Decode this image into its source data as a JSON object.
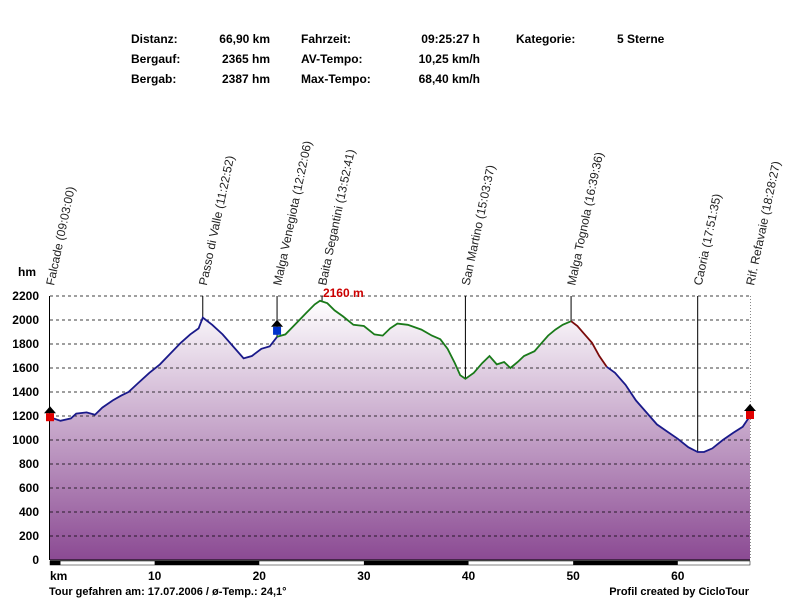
{
  "stats": {
    "distanz_label": "Distanz:",
    "distanz_value": "66,90 km",
    "bergauf_label": "Bergauf:",
    "bergauf_value": "2365 hm",
    "bergab_label": "Bergab:",
    "bergab_value": "2387 hm",
    "fahrzeit_label": "Fahrzeit:",
    "fahrzeit_value": "09:25:27 h",
    "av_label": "AV-Tempo:",
    "av_value": "10,25 km/h",
    "max_label": "Max-Tempo:",
    "max_value": "68,40 km/h",
    "kategorie_label": "Kategorie:",
    "kategorie_value": "5 Sterne"
  },
  "footer": {
    "left": "Tour gefahren am: 17.07.2006  /  ø-Temp.: 24,1°",
    "right": "Profil created by CicloTour"
  },
  "colors": {
    "fill_top": "#ffffff",
    "fill_bottom": "#8b4a93",
    "line_blue": "#1a1a8a",
    "line_green": "#1a7a1a",
    "line_red": "#7a0a0a",
    "max_label": "#cc0000",
    "marker_red": "#e00000",
    "marker_blue": "#0033cc"
  },
  "chart_data": {
    "type": "area",
    "ylabel": "hm",
    "xlabel": "km",
    "xlim": [
      0,
      66.9
    ],
    "ylim": [
      0,
      2200
    ],
    "yticks": [
      0,
      200,
      400,
      600,
      800,
      1000,
      1200,
      1400,
      1600,
      1800,
      2000,
      2200
    ],
    "xticks": [
      10,
      20,
      30,
      40,
      50,
      60
    ],
    "grid": "horizontal dashed",
    "max_annotation": {
      "label": "2160 m",
      "x": 25.8,
      "y": 2160
    },
    "waypoints": [
      {
        "name": "Falcade (09:03:00)",
        "x": 0,
        "elevation": 1190
      },
      {
        "name": "Passo di Valle (11:22:52)",
        "x": 14.6,
        "elevation": 2020
      },
      {
        "name": "Malga Venegiota (12:22:06)",
        "x": 21.7,
        "elevation": 1860
      },
      {
        "name": "Baita Segantini (13:52:41)",
        "x": 26.0,
        "elevation": 2160
      },
      {
        "name": "San Martino (15:03:37)",
        "x": 39.7,
        "elevation": 1510
      },
      {
        "name": "Malga Tognola (16:39:36)",
        "x": 49.8,
        "elevation": 1990
      },
      {
        "name": "Caoria (17:51:35)",
        "x": 61.9,
        "elevation": 900
      },
      {
        "name": "Rif. Refavaie (18:28:27)",
        "x": 66.9,
        "elevation": 1200
      }
    ],
    "series": [
      {
        "values": [
          [
            0,
            1190
          ],
          [
            1,
            1160
          ],
          [
            2,
            1180
          ],
          [
            2.5,
            1220
          ],
          [
            3.5,
            1230
          ],
          [
            4.3,
            1210
          ],
          [
            5,
            1270
          ],
          [
            6,
            1330
          ],
          [
            6.8,
            1370
          ],
          [
            7.5,
            1400
          ],
          [
            8.5,
            1480
          ],
          [
            9.5,
            1560
          ],
          [
            10.5,
            1630
          ],
          [
            11.5,
            1720
          ],
          [
            12.5,
            1810
          ],
          [
            13.4,
            1880
          ],
          [
            14.2,
            1930
          ],
          [
            14.6,
            2020
          ],
          [
            15.5,
            1960
          ],
          [
            16.5,
            1880
          ],
          [
            17.5,
            1780
          ],
          [
            18.5,
            1680
          ],
          [
            19.3,
            1700
          ],
          [
            20.2,
            1760
          ],
          [
            21,
            1780
          ],
          [
            21.7,
            1860
          ]
        ]
      },
      {
        "values": [
          [
            21.7,
            1860
          ],
          [
            22.5,
            1880
          ],
          [
            23.5,
            1970
          ],
          [
            24.5,
            2060
          ],
          [
            25.3,
            2130
          ],
          [
            25.8,
            2160
          ],
          [
            26.5,
            2140
          ],
          [
            27.2,
            2080
          ],
          [
            28,
            2030
          ],
          [
            29,
            1960
          ],
          [
            30,
            1950
          ],
          [
            31,
            1880
          ],
          [
            31.8,
            1870
          ],
          [
            32.5,
            1930
          ],
          [
            33.2,
            1970
          ],
          [
            34.2,
            1960
          ],
          [
            35.5,
            1920
          ],
          [
            36.5,
            1870
          ],
          [
            37.3,
            1840
          ],
          [
            38,
            1760
          ],
          [
            38.7,
            1640
          ],
          [
            39.2,
            1540
          ],
          [
            39.7,
            1510
          ],
          [
            40.5,
            1560
          ],
          [
            41.3,
            1640
          ],
          [
            42,
            1700
          ],
          [
            42.7,
            1630
          ],
          [
            43.4,
            1650
          ],
          [
            44,
            1600
          ],
          [
            44.7,
            1650
          ],
          [
            45.3,
            1700
          ],
          [
            46.3,
            1740
          ],
          [
            47,
            1810
          ],
          [
            47.6,
            1870
          ],
          [
            48.3,
            1920
          ],
          [
            49,
            1960
          ],
          [
            49.8,
            1990
          ]
        ]
      },
      {
        "values": [
          [
            49.8,
            1990
          ],
          [
            50.4,
            1950
          ],
          [
            51,
            1890
          ],
          [
            51.8,
            1810
          ],
          [
            52.5,
            1700
          ],
          [
            53.2,
            1610
          ]
        ]
      },
      {
        "values": [
          [
            53.2,
            1610
          ],
          [
            54,
            1560
          ],
          [
            55,
            1460
          ],
          [
            56,
            1330
          ],
          [
            57,
            1230
          ],
          [
            58,
            1130
          ],
          [
            59,
            1070
          ],
          [
            60,
            1010
          ],
          [
            61,
            940
          ],
          [
            61.9,
            900
          ],
          [
            62.5,
            900
          ],
          [
            63.3,
            930
          ],
          [
            64.3,
            1000
          ],
          [
            65.3,
            1060
          ],
          [
            66.2,
            1110
          ],
          [
            66.9,
            1200
          ]
        ]
      }
    ]
  }
}
